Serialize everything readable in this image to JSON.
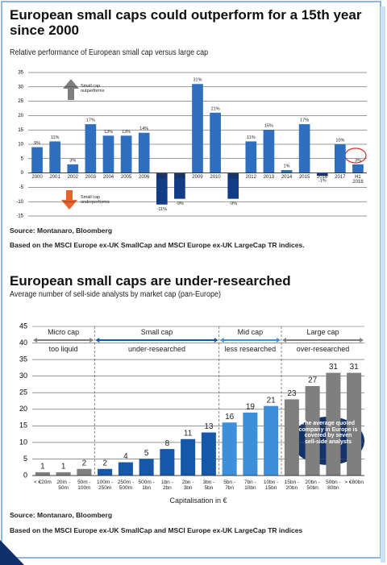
{
  "chart_data": [
    {
      "type": "bar",
      "title": "European small caps could outperform for a 15th year since 2000",
      "subtitle": "Relative performance of European small cap versus large cap",
      "categories": [
        "2000",
        "2001",
        "2002",
        "2003",
        "2004",
        "2005",
        "2006",
        "2007",
        "2008",
        "2009",
        "2010",
        "2011",
        "2012",
        "2013",
        "2014",
        "2015",
        "2016",
        "2017",
        "H1 2018"
      ],
      "values": [
        9,
        11,
        3,
        17,
        13,
        13,
        14,
        -11,
        -9,
        31,
        21,
        -9,
        11,
        15,
        1,
        17,
        -1,
        10,
        3
      ],
      "value_labels": [
        "9%",
        "11%",
        "3%",
        "17%",
        "13%",
        "13%",
        "14%",
        "-11%",
        "-9%",
        "31%",
        "21%",
        "-9%",
        "11%",
        "15%",
        "1%",
        "17%",
        "-1%",
        "10%",
        "3%"
      ],
      "color": "#2f6fc0",
      "negative_color": "#123c85",
      "ylim": [
        -15,
        35
      ],
      "yticks": [
        -15,
        -10,
        -5,
        0,
        5,
        10,
        15,
        20,
        25,
        30,
        35
      ],
      "grid": true,
      "annotations": [
        "Small cap outperforms",
        "Small cap underperforms"
      ],
      "source": "Source: Montanaro, Bloomberg",
      "note": "Based on the MSCI Europe ex-UK SmallCap and MSCI Europe ex-UK LargeCap TR indices."
    },
    {
      "type": "bar",
      "title": "European small caps are under-researched",
      "subtitle": "Average number of sell-side analysts by market cap (pan-Europe)",
      "categories": [
        "< €20m",
        "20m - 50m",
        "50m - 100m",
        "100m - 250m",
        "250m - 500m",
        "500m - 1bn",
        "1bn - 2bn",
        "2bn - 3bn",
        "3bn - 5bn",
        "5bn - 7bn",
        "7bn - 10bn",
        "10bn - 15bn",
        "15bn - 20bn",
        "20bn - 50bn",
        "50bn - 80bn",
        "> €80bn"
      ],
      "values": [
        1,
        1,
        2,
        2,
        4,
        5,
        8,
        11,
        13,
        16,
        19,
        21,
        23,
        27,
        31,
        31
      ],
      "colors": [
        "#7f7f7f",
        "#7f7f7f",
        "#7f7f7f",
        "#1557a8",
        "#1557a8",
        "#1557a8",
        "#1557a8",
        "#1557a8",
        "#1557a8",
        "#3c8fd9",
        "#3c8fd9",
        "#3c8fd9",
        "#7f7f7f",
        "#7f7f7f",
        "#7f7f7f",
        "#7f7f7f"
      ],
      "ylim": [
        0,
        45
      ],
      "yticks": [
        0,
        5,
        10,
        15,
        20,
        25,
        30,
        35,
        40,
        45
      ],
      "grid": true,
      "x_label": "Capitalisation in €",
      "groups": [
        {
          "name": "Micro cap",
          "description": "too liquid"
        },
        {
          "name": "Small cap",
          "description": "under-researched"
        },
        {
          "name": "Mid cap",
          "description": "less researched"
        },
        {
          "name": "Large cap",
          "description": "over-researched"
        }
      ],
      "annotation": "The average quoted company in Europe is covered by seven sell-side analysts",
      "source": "Source: Montanaro, Bloomberg",
      "note": "Based on the MSCI Europe ex-UK SmallCap and MSCI Europe ex-UK LargeCap TR indices"
    }
  ]
}
